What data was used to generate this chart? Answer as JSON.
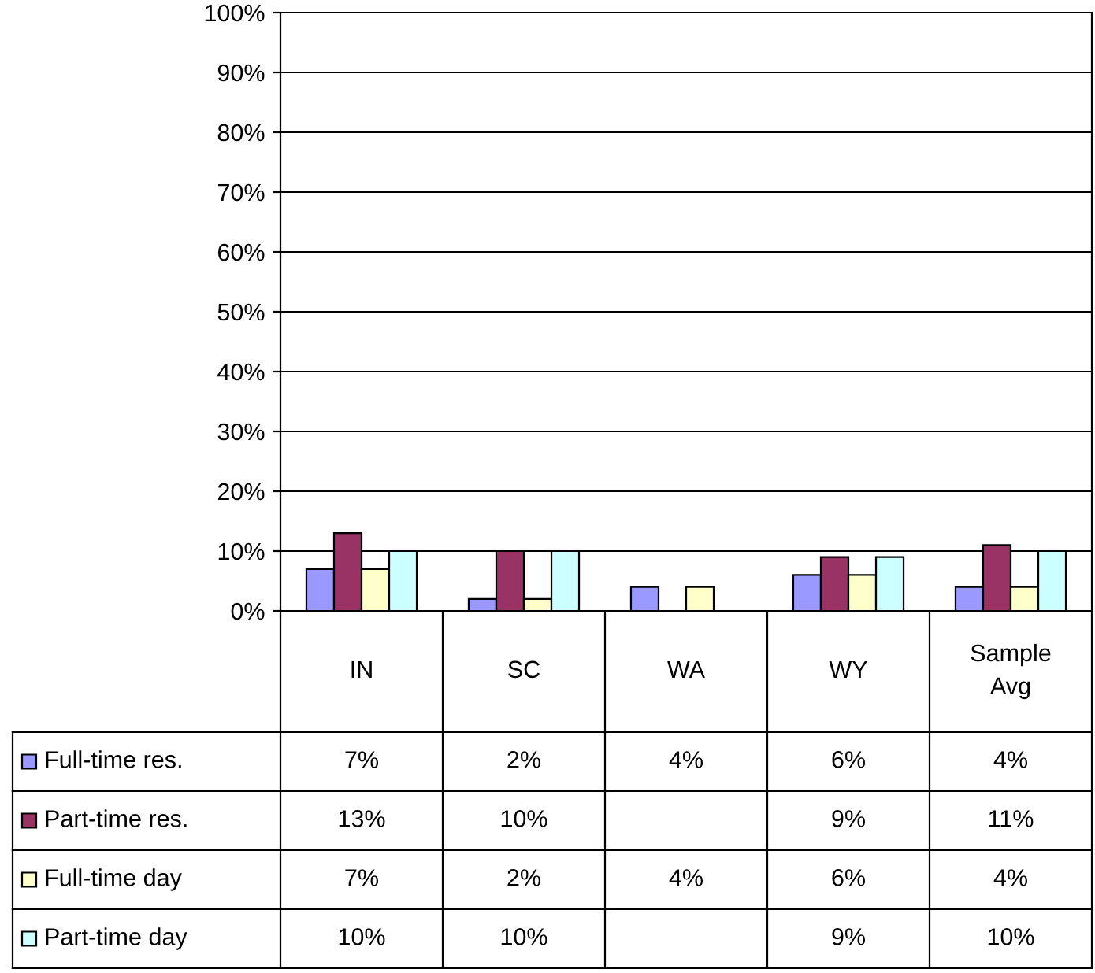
{
  "chart_data": {
    "type": "bar",
    "categories": [
      "IN",
      "SC",
      "WA",
      "WY",
      "Sample\nAvg"
    ],
    "series": [
      {
        "name": "Full-time res.",
        "color": "#9999ff",
        "values": [
          7,
          2,
          4,
          6,
          4
        ],
        "value_labels": [
          "7%",
          "2%",
          "4%",
          "6%",
          "4%"
        ]
      },
      {
        "name": "Part-time res.",
        "color": "#993366",
        "values": [
          13,
          10,
          null,
          9,
          11
        ],
        "value_labels": [
          "13%",
          "10%",
          null,
          "9%",
          "11%"
        ]
      },
      {
        "name": "Full-time day",
        "color": "#ffffcc",
        "values": [
          7,
          2,
          4,
          6,
          4
        ],
        "value_labels": [
          "7%",
          "2%",
          "4%",
          "6%",
          "4%"
        ]
      },
      {
        "name": "Part-time day",
        "color": "#ccffff",
        "values": [
          10,
          10,
          null,
          9,
          10
        ],
        "value_labels": [
          "10%",
          "10%",
          null,
          "9%",
          "10%"
        ]
      }
    ],
    "ylim": [
      0,
      100
    ],
    "yticks": [
      {
        "value": 0,
        "label": "0%"
      },
      {
        "value": 10,
        "label": "10%"
      },
      {
        "value": 20,
        "label": "20%"
      },
      {
        "value": 30,
        "label": "30%"
      },
      {
        "value": 40,
        "label": "40%"
      },
      {
        "value": 50,
        "label": "50%"
      },
      {
        "value": 60,
        "label": "60%"
      },
      {
        "value": 70,
        "label": "70%"
      },
      {
        "value": 80,
        "label": "80%"
      },
      {
        "value": 90,
        "label": "90%"
      },
      {
        "value": 100,
        "label": "100%"
      }
    ],
    "grid": "y",
    "legend": "bottom"
  }
}
